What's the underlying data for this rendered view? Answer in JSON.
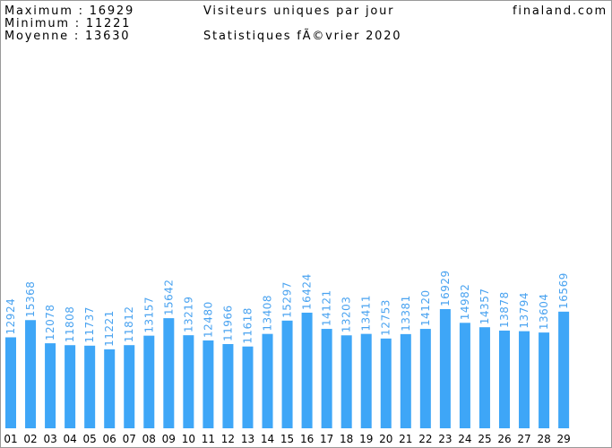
{
  "header": {
    "stats": [
      "Maximum : 16929",
      "Minimum : 11221",
      "Moyenne : 13630"
    ],
    "title": "Visiteurs uniques par jour",
    "subtitle": "Statistiques fÃ©vrier 2020",
    "site": "finaland.com"
  },
  "chart_data": {
    "type": "bar",
    "color": "#3ea6f7",
    "label_color": "#4aa3f0",
    "categories": [
      "01",
      "02",
      "03",
      "04",
      "05",
      "06",
      "07",
      "08",
      "09",
      "10",
      "11",
      "12",
      "13",
      "14",
      "15",
      "16",
      "17",
      "18",
      "19",
      "20",
      "21",
      "22",
      "23",
      "24",
      "25",
      "26",
      "27",
      "28",
      "29"
    ],
    "values": [
      12924,
      15368,
      12078,
      11808,
      11737,
      11221,
      11812,
      13157,
      15642,
      13219,
      12480,
      11966,
      11618,
      13408,
      15297,
      16424,
      14121,
      13203,
      13411,
      12753,
      13381,
      14120,
      16929,
      14982,
      14357,
      13878,
      13794,
      13604,
      16569
    ]
  }
}
